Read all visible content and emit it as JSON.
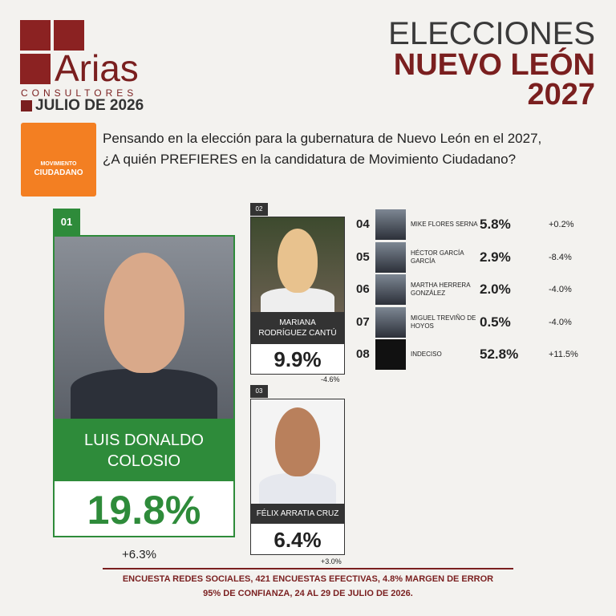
{
  "header": {
    "logo_name": "Arias",
    "logo_sub": "CONSULTORES",
    "date": "JULIO DE 2026",
    "title": [
      "ELECCIONES",
      "NUEVO LEÓN",
      "2027"
    ]
  },
  "party": [
    "MOVIMIENTO",
    "CIUDADANO"
  ],
  "question": "Pensando en la elección para la gubernatura de Nuevo León en el 2027, ¿A quién PREFIERES en la candidatura de Movimiento Ciudadano?",
  "leaders": [
    {
      "rank": "01",
      "name": [
        "LUIS DONALDO",
        "COLOSIO"
      ],
      "value": "19.8%",
      "change": "+6.3%"
    },
    {
      "rank": "02",
      "name": [
        "MARIANA",
        "RODRÍGUEZ CANTÚ"
      ],
      "value": "9.9%",
      "change": "-4.6%"
    },
    {
      "rank": "03",
      "name": [
        "FÉLIX ARRATIA CRUZ"
      ],
      "value": "6.4%",
      "change": "+3.0%"
    }
  ],
  "others": [
    {
      "rank": "04",
      "name": [
        "MIKE FLORES SERNA"
      ],
      "value": "5.8%",
      "change": "+0.2%"
    },
    {
      "rank": "05",
      "name": [
        "HÉCTOR GARCÍA",
        "GARCÍA"
      ],
      "value": "2.9%",
      "change": "-8.4%"
    },
    {
      "rank": "06",
      "name": [
        "MARTHA HERRERA",
        "GONZÁLEZ"
      ],
      "value": "2.0%",
      "change": "-4.0%"
    },
    {
      "rank": "07",
      "name": [
        "MIGUEL TREVIÑO DE",
        "HOYOS"
      ],
      "value": "0.5%",
      "change": "-4.0%"
    },
    {
      "rank": "08",
      "name": [
        "INDECISO"
      ],
      "value": "52.8%",
      "change": "+11.5%"
    }
  ],
  "footer": [
    "ENCUESTA REDES SOCIALES, 421 ENCUESTAS EFECTIVAS, 4.8%  MARGEN DE ERROR",
    "95% DE CONFIANZA, 24 AL 29 DE JULIO DE 2026."
  ]
}
